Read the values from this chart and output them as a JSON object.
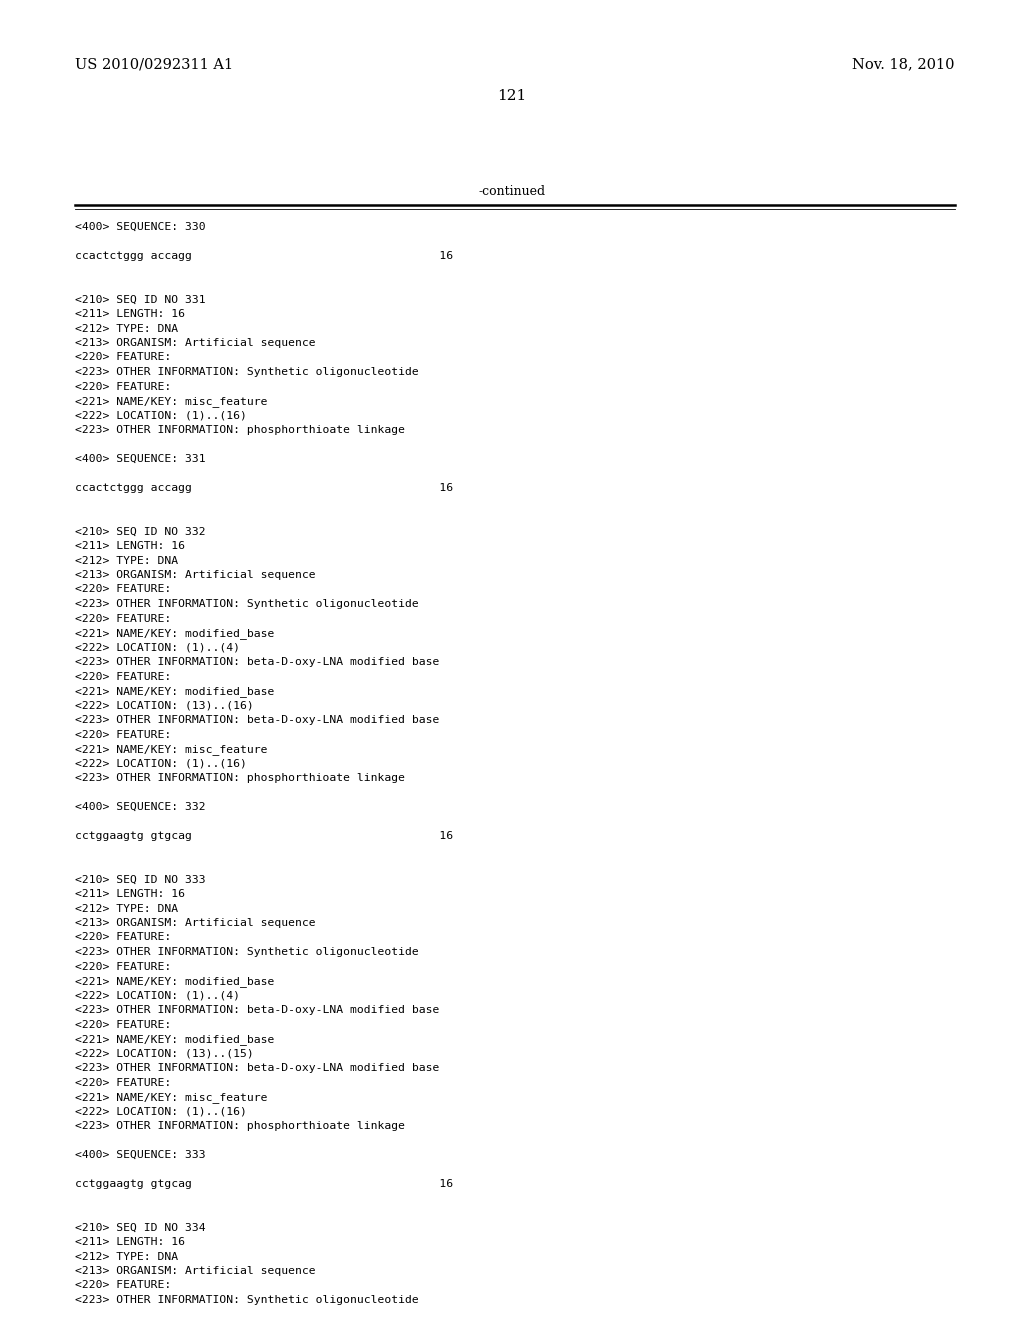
{
  "header_left": "US 2010/0292311 A1",
  "header_right": "Nov. 18, 2010",
  "page_number": "121",
  "continued_text": "-continued",
  "background_color": "#ffffff",
  "text_color": "#000000",
  "mono_size": 8.2,
  "header_size": 10.5,
  "page_num_size": 11,
  "content_lines": [
    "<400> SEQUENCE: 330",
    "",
    "ccactctggg accagg                                    16",
    "",
    "",
    "<210> SEQ ID NO 331",
    "<211> LENGTH: 16",
    "<212> TYPE: DNA",
    "<213> ORGANISM: Artificial sequence",
    "<220> FEATURE:",
    "<223> OTHER INFORMATION: Synthetic oligonucleotide",
    "<220> FEATURE:",
    "<221> NAME/KEY: misc_feature",
    "<222> LOCATION: (1)..(16)",
    "<223> OTHER INFORMATION: phosphorthioate linkage",
    "",
    "<400> SEQUENCE: 331",
    "",
    "ccactctggg accagg                                    16",
    "",
    "",
    "<210> SEQ ID NO 332",
    "<211> LENGTH: 16",
    "<212> TYPE: DNA",
    "<213> ORGANISM: Artificial sequence",
    "<220> FEATURE:",
    "<223> OTHER INFORMATION: Synthetic oligonucleotide",
    "<220> FEATURE:",
    "<221> NAME/KEY: modified_base",
    "<222> LOCATION: (1)..(4)",
    "<223> OTHER INFORMATION: beta-D-oxy-LNA modified base",
    "<220> FEATURE:",
    "<221> NAME/KEY: modified_base",
    "<222> LOCATION: (13)..(16)",
    "<223> OTHER INFORMATION: beta-D-oxy-LNA modified base",
    "<220> FEATURE:",
    "<221> NAME/KEY: misc_feature",
    "<222> LOCATION: (1)..(16)",
    "<223> OTHER INFORMATION: phosphorthioate linkage",
    "",
    "<400> SEQUENCE: 332",
    "",
    "cctggaagtg gtgcag                                    16",
    "",
    "",
    "<210> SEQ ID NO 333",
    "<211> LENGTH: 16",
    "<212> TYPE: DNA",
    "<213> ORGANISM: Artificial sequence",
    "<220> FEATURE:",
    "<223> OTHER INFORMATION: Synthetic oligonucleotide",
    "<220> FEATURE:",
    "<221> NAME/KEY: modified_base",
    "<222> LOCATION: (1)..(4)",
    "<223> OTHER INFORMATION: beta-D-oxy-LNA modified base",
    "<220> FEATURE:",
    "<221> NAME/KEY: modified_base",
    "<222> LOCATION: (13)..(15)",
    "<223> OTHER INFORMATION: beta-D-oxy-LNA modified base",
    "<220> FEATURE:",
    "<221> NAME/KEY: misc_feature",
    "<222> LOCATION: (1)..(16)",
    "<223> OTHER INFORMATION: phosphorthioate linkage",
    "",
    "<400> SEQUENCE: 333",
    "",
    "cctggaagtg gtgcag                                    16",
    "",
    "",
    "<210> SEQ ID NO 334",
    "<211> LENGTH: 16",
    "<212> TYPE: DNA",
    "<213> ORGANISM: Artificial sequence",
    "<220> FEATURE:",
    "<223> OTHER INFORMATION: Synthetic oligonucleotide"
  ]
}
